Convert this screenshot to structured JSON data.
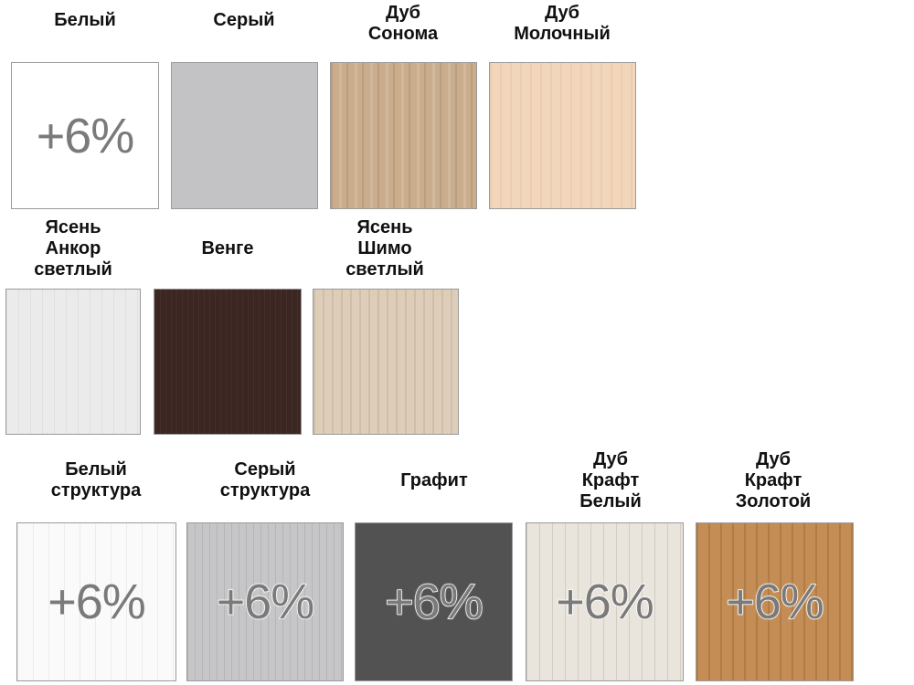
{
  "swatches": [
    {
      "lines": [
        "Белый"
      ],
      "badge": "+6%",
      "color": "#ffffff"
    },
    {
      "lines": [
        "Серый"
      ],
      "badge": "",
      "color": "#c3c3c5"
    },
    {
      "lines": [
        "Дуб",
        "Сонома"
      ],
      "badge": "",
      "color": "#c9ad8c"
    },
    {
      "lines": [
        "Дуб",
        "Молочный"
      ],
      "badge": "",
      "color": "#f2d6bb"
    },
    {
      "lines": [
        "Ясень",
        "Анкор",
        "светлый"
      ],
      "badge": "",
      "color": "#ecebec"
    },
    {
      "lines": [
        "Венге"
      ],
      "badge": "",
      "color": "#3b2622"
    },
    {
      "lines": [
        "Ясень",
        "Шимо",
        "светлый"
      ],
      "badge": "",
      "color": "#ddcdb9"
    },
    {
      "lines": [
        "Белый",
        "структура"
      ],
      "badge": "+6%",
      "color": "#fafafa"
    },
    {
      "lines": [
        "Серый",
        "структура"
      ],
      "badge": "+6%",
      "color": "#c6c6c8"
    },
    {
      "lines": [
        "Графит"
      ],
      "badge": "+6%",
      "color": "#525252"
    },
    {
      "lines": [
        "Дуб",
        "Крафт",
        "Белый"
      ],
      "badge": "+6%",
      "color": "#e9e5dc"
    },
    {
      "lines": [
        "Дуб",
        "Крафт",
        "Золотой"
      ],
      "badge": "+6%",
      "color": "#c48d55"
    }
  ]
}
